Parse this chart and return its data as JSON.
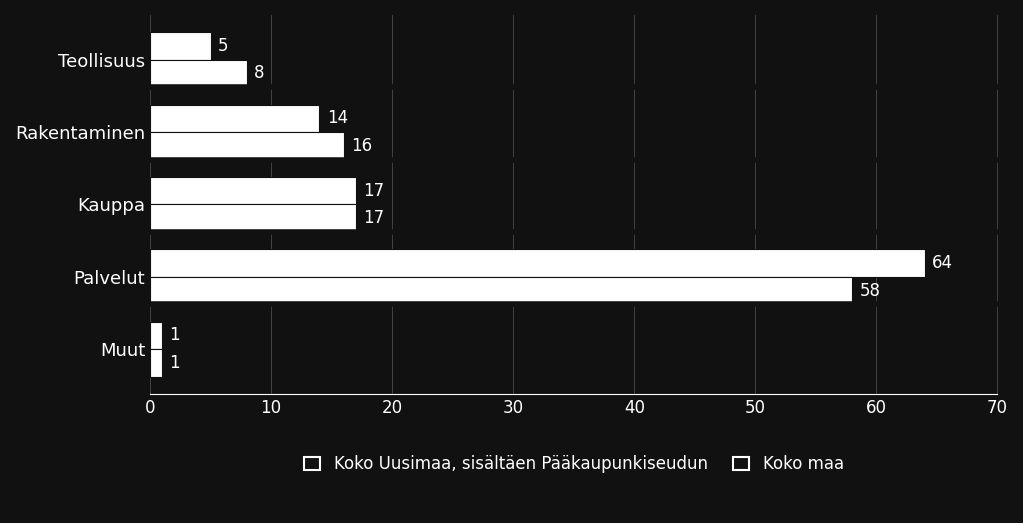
{
  "categories": [
    "Teollisuus",
    "Rakentaminen",
    "Kauppa",
    "Palvelut",
    "Muut"
  ],
  "series1_values": [
    5,
    14,
    17,
    64,
    1
  ],
  "series2_values": [
    8,
    16,
    17,
    58,
    1
  ],
  "series1_label": "Koko Uusimaa, sisältäen Pääkaupunkiseudun",
  "series2_label": "Koko maa",
  "series1_color": "#ffffff",
  "series2_color": "#ffffff",
  "background_color": "#111111",
  "plot_bg_color": "#111111",
  "text_color": "#ffffff",
  "bar_edge_color": "#111111",
  "separator_color": "#111111",
  "xlim": [
    0,
    70
  ],
  "xticks": [
    0,
    10,
    20,
    30,
    40,
    50,
    60,
    70
  ],
  "bar_height": 0.38,
  "label_fontsize": 13,
  "tick_fontsize": 12,
  "legend_fontsize": 12,
  "value_fontsize": 12,
  "grid_color": "#444444",
  "legend_marker_color": "#111111"
}
